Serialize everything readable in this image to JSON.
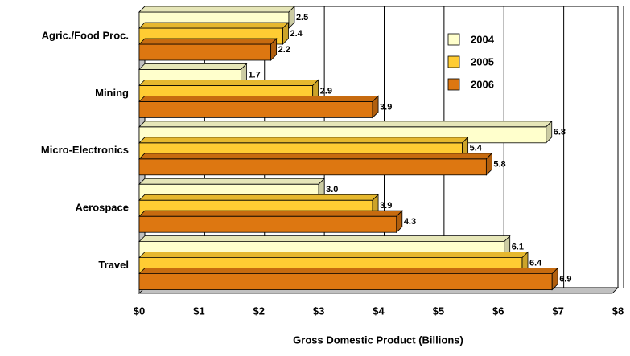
{
  "chart_data": {
    "type": "bar",
    "orientation": "horizontal",
    "categories": [
      "Agric./Food Proc.",
      "Mining",
      "Micro-Electronics",
      "Aerospace",
      "Travel"
    ],
    "series": [
      {
        "name": "2004",
        "color": "#ffffcc",
        "values": [
          2.5,
          1.7,
          6.8,
          3.0,
          6.1
        ],
        "value_labels": [
          "2.5",
          "1.7",
          "6.8",
          "3.0",
          "6.1"
        ]
      },
      {
        "name": "2005",
        "color": "#ffcc33",
        "values": [
          2.4,
          2.9,
          5.4,
          3.9,
          6.4
        ],
        "value_labels": [
          "2.4",
          "2.9",
          "5.4",
          "3.9",
          "6.4"
        ]
      },
      {
        "name": "2006",
        "color": "#dd7711",
        "values": [
          2.2,
          3.9,
          5.8,
          4.3,
          6.9
        ],
        "value_labels": [
          "2.2",
          "3.9",
          "5.8",
          "4.3",
          "6.9"
        ]
      }
    ],
    "xlabel": "Gross Domestic Product (Billions)",
    "xlim": [
      0,
      8
    ],
    "xticks": [
      {
        "value": 0,
        "label": "$0"
      },
      {
        "value": 1,
        "label": "$1"
      },
      {
        "value": 2,
        "label": "$2"
      },
      {
        "value": 3,
        "label": "$3"
      },
      {
        "value": 4,
        "label": "$4"
      },
      {
        "value": 5,
        "label": "$5"
      },
      {
        "value": 6,
        "label": "$6"
      },
      {
        "value": 7,
        "label": "$7"
      },
      {
        "value": 8,
        "label": "$8"
      }
    ],
    "grid": true
  }
}
